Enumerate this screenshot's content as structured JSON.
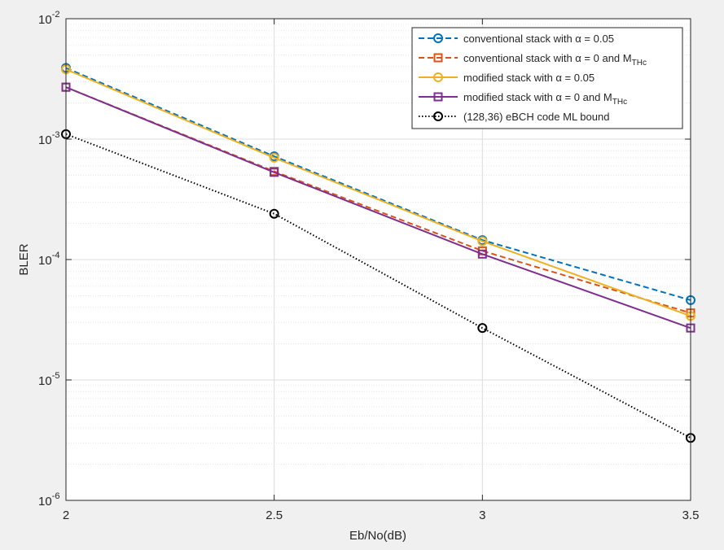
{
  "chart_data": {
    "type": "line",
    "xlabel": "Eb/No(dB)",
    "ylabel": "BLER",
    "yscale": "log",
    "xlim": [
      2,
      3.5
    ],
    "ylim": [
      1e-06,
      0.01
    ],
    "grid": true,
    "minor_grid": true,
    "legend_position": "top-right",
    "x": [
      2,
      2.5,
      3,
      3.5
    ],
    "x_ticks": [
      "2",
      "2.5",
      "3",
      "3.5"
    ],
    "y_ticks": [
      {
        "base": "10",
        "exp": "-6"
      },
      {
        "base": "10",
        "exp": "-5"
      },
      {
        "base": "10",
        "exp": "-4"
      },
      {
        "base": "10",
        "exp": "-3"
      },
      {
        "base": "10",
        "exp": "-2"
      }
    ],
    "series": [
      {
        "name": "conventional stack with α = 0.05",
        "values": [
          0.0039,
          0.00072,
          0.000145,
          4.6e-05
        ],
        "color": "#0072BD",
        "line": "dashed",
        "marker": "circle"
      },
      {
        "name_main": "conventional stack with α = 0 and M",
        "name_sub": "THc",
        "values": [
          0.0027,
          0.00054,
          0.000118,
          3.6e-05
        ],
        "color": "#D95319",
        "line": "dashed",
        "marker": "square"
      },
      {
        "name": "modified stack with α = 0.05",
        "values": [
          0.0038,
          0.0007,
          0.000142,
          3.4e-05
        ],
        "color": "#EDB120",
        "line": "solid",
        "marker": "circle"
      },
      {
        "name_main": "modified stack with α = 0 and M",
        "name_sub": "THc",
        "values": [
          0.0027,
          0.00053,
          0.000111,
          2.7e-05
        ],
        "color": "#7E2F8E",
        "line": "solid",
        "marker": "square"
      },
      {
        "name": "(128,36) eBCH code ML bound",
        "values": [
          0.0011,
          0.00024,
          2.7e-05,
          3.3e-06
        ],
        "color": "#000000",
        "line": "dotted",
        "marker": "circle"
      }
    ]
  }
}
